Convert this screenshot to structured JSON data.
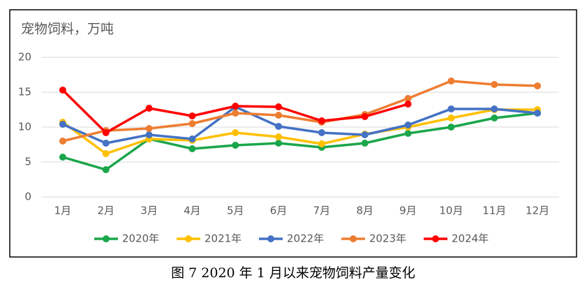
{
  "chart_data": {
    "type": "line",
    "title": "宠物饲料，万吨",
    "caption": "图 7 2020 年 1 月以来宠物饲料产量变化",
    "categories": [
      "1月",
      "2月",
      "3月",
      "4月",
      "5月",
      "6月",
      "7月",
      "8月",
      "9月",
      "10月",
      "11月",
      "12月"
    ],
    "series": [
      {
        "name": "2020年",
        "color": "#1aa64a",
        "values": [
          5.7,
          3.9,
          8.3,
          6.9,
          7.4,
          7.7,
          7.1,
          7.7,
          9.1,
          10.0,
          11.3,
          12.0
        ]
      },
      {
        "name": "2021年",
        "color": "#ffc000",
        "values": [
          10.7,
          6.2,
          8.3,
          8.1,
          9.2,
          8.6,
          7.6,
          9.0,
          10.0,
          11.3,
          12.5,
          12.5
        ]
      },
      {
        "name": "2022年",
        "color": "#4472c4",
        "values": [
          10.4,
          7.7,
          8.9,
          8.3,
          12.9,
          10.1,
          9.2,
          8.9,
          10.3,
          12.6,
          12.6,
          12.0
        ]
      },
      {
        "name": "2023年",
        "color": "#ed7d31",
        "values": [
          8.0,
          9.5,
          9.8,
          10.5,
          12.0,
          11.7,
          10.7,
          11.8,
          14.1,
          16.6,
          16.1,
          15.9
        ]
      },
      {
        "name": "2024年",
        "color": "#ff0000",
        "values": [
          15.3,
          9.2,
          12.7,
          11.6,
          13.0,
          12.9,
          10.9,
          11.5,
          13.3,
          null,
          null,
          null
        ]
      }
    ],
    "ylim": [
      0,
      20
    ],
    "yticks": [
      0,
      5,
      10,
      15,
      20
    ],
    "grid": true,
    "legend": "bottom"
  }
}
